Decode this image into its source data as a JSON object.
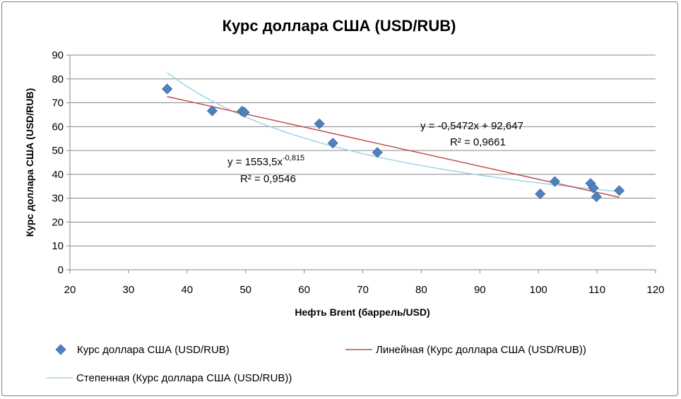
{
  "chart_data": {
    "type": "scatter",
    "title": "Курс доллара США (USD/RUB)",
    "xlabel": "Нефть Brent (баррель/USD)",
    "ylabel": "Курс доллара США (USD/RUB)",
    "xlim": [
      20,
      120
    ],
    "ylim": [
      0,
      90
    ],
    "x_ticks": [
      "20",
      "30",
      "40",
      "50",
      "60",
      "70",
      "80",
      "90",
      "100",
      "110",
      "120"
    ],
    "y_ticks": [
      "0",
      "10",
      "20",
      "30",
      "40",
      "50",
      "60",
      "70",
      "80",
      "90"
    ],
    "grid": "horizontal",
    "series": [
      {
        "name": "Курс доллара США (USD/RUB)",
        "kind": "points",
        "marker": "diamond",
        "color": "#4f81bd",
        "x": [
          36.6,
          44.3,
          49.4,
          49.8,
          62.6,
          64.9,
          72.5,
          100.3,
          102.8,
          108.9,
          109.4,
          109.9,
          113.8
        ],
        "y": [
          75.8,
          66.6,
          66.5,
          66.0,
          61.2,
          53.1,
          49.2,
          31.8,
          37.0,
          36.2,
          34.3,
          30.6,
          33.2
        ]
      },
      {
        "name": "Линейная (Курс доллара США (USD/RUB))",
        "kind": "linear-trend",
        "color": "#c0504d",
        "slope": -0.5472,
        "intercept": 92.647,
        "x_range": [
          36.6,
          113.8
        ]
      },
      {
        "name": "Степенная (Курс доллара США (USD/RUB))",
        "kind": "power-trend",
        "color": "#9dd3e8",
        "coefficient": 1553.5,
        "exponent": -0.815,
        "x_range": [
          36.6,
          113.8
        ]
      }
    ],
    "annotations": {
      "linear": {
        "equation": "y = -0,5472x + 92,647",
        "r2": "R² = 0,9661"
      },
      "power": {
        "equation_base": "y = 1553,5x",
        "equation_exponent": "-0,815",
        "r2": "R² = 0,9546"
      }
    },
    "legend": {
      "position": "bottom",
      "items": [
        "Курс доллара США (USD/RUB)",
        "Линейная (Курс доллара США (USD/RUB))",
        "Степенная (Курс доллара США (USD/RUB))"
      ]
    }
  }
}
